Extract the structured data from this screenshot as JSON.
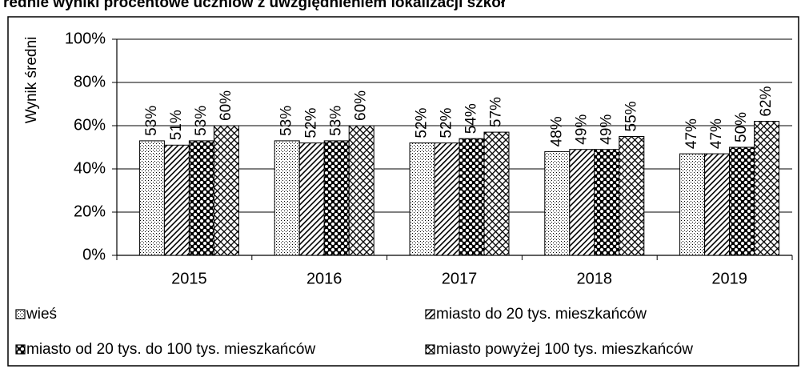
{
  "chart_data": {
    "type": "bar",
    "title": "rednie wyniki procentowe uczniów z uwzględnieniem lokalizacji szkół",
    "ylabel": "Wynik średni",
    "categories": [
      "2015",
      "2016",
      "2017",
      "2018",
      "2019"
    ],
    "series": [
      {
        "name": "wieś",
        "color": "#000000",
        "pattern": "dots",
        "values": [
          53,
          53,
          52,
          48,
          47
        ],
        "value_labels": [
          "53%",
          "53%",
          "52%",
          "48%",
          "47%"
        ]
      },
      {
        "name": "miasto do 20 tys. mieszkańców",
        "color": "#000000",
        "pattern": "diagonal",
        "values": [
          51,
          52,
          52,
          49,
          47
        ],
        "value_labels": [
          "51%",
          "52%",
          "52%",
          "49%",
          "47%"
        ]
      },
      {
        "name": "miasto od 20 tys. do 100 tys. mieszkańców",
        "color": "#000000",
        "pattern": "checker",
        "values": [
          53,
          53,
          54,
          49,
          50
        ],
        "value_labels": [
          "53%",
          "53%",
          "54%",
          "49%",
          "50%"
        ]
      },
      {
        "name": "miasto powyżej 100 tys. mieszkańców",
        "color": "#000000",
        "pattern": "cross",
        "values": [
          60,
          60,
          57,
          55,
          62
        ],
        "value_labels": [
          "60%",
          "60%",
          "57%",
          "55%",
          "62%"
        ]
      }
    ],
    "ylim": [
      0,
      100
    ],
    "yticks": [
      {
        "value": 0,
        "label": "0%"
      },
      {
        "value": 20,
        "label": "20%"
      },
      {
        "value": 40,
        "label": "40%"
      },
      {
        "value": 60,
        "label": "60%"
      },
      {
        "value": 80,
        "label": "80%"
      },
      {
        "value": 100,
        "label": "100%"
      }
    ],
    "grid": true,
    "legend": "bottom"
  }
}
